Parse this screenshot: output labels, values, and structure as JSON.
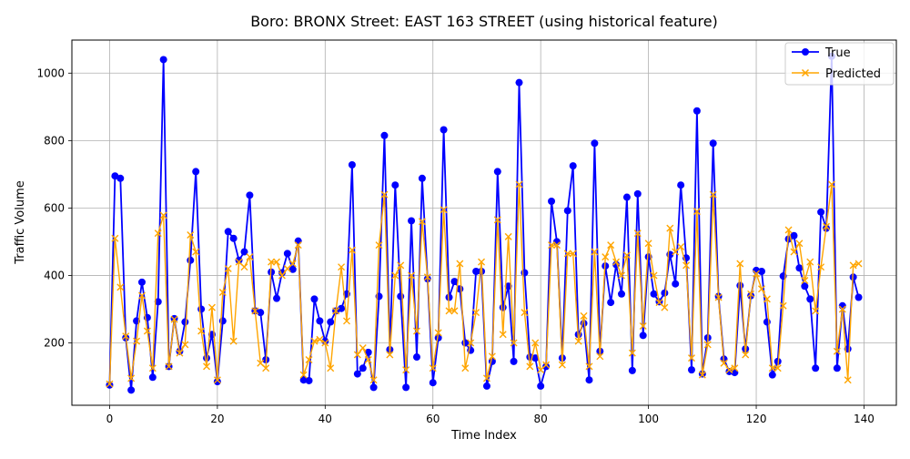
{
  "chart_data": {
    "type": "line",
    "title": "Boro: BRONX Street: EAST 163 STREET (using historical feature)",
    "xlabel": "Time Index",
    "ylabel": "Traffic Volume",
    "xlim": [
      -7,
      146
    ],
    "ylim": [
      15,
      1098
    ],
    "xticks": [
      0,
      20,
      40,
      60,
      80,
      100,
      120,
      140
    ],
    "yticks": [
      200,
      400,
      600,
      800,
      1000
    ],
    "grid": true,
    "legend_position": "top-right",
    "series": [
      {
        "name": "True",
        "color": "#0000ff",
        "marker": "circle",
        "values": [
          75,
          695,
          688,
          215,
          60,
          265,
          380,
          275,
          98,
          322,
          1040,
          130,
          272,
          175,
          262,
          445,
          708,
          300,
          155,
          225,
          85,
          265,
          530,
          510,
          445,
          470,
          638,
          295,
          290,
          150,
          410,
          332,
          408,
          465,
          418,
          502,
          90,
          88,
          330,
          265,
          205,
          262,
          295,
          302,
          345,
          728,
          108,
          125,
          172,
          68,
          338,
          815,
          180,
          668,
          338,
          68,
          562,
          158,
          688,
          390,
          82,
          215,
          832,
          335,
          382,
          360,
          200,
          178,
          412,
          412,
          72,
          145,
          708,
          305,
          368,
          145,
          972,
          408,
          158,
          155,
          72,
          130,
          620,
          500,
          155,
          592,
          725,
          225,
          258,
          90,
          792,
          175,
          428,
          320,
          432,
          345,
          632,
          118,
          642,
          222,
          455,
          345,
          322,
          348,
          462,
          375,
          668,
          452,
          120,
          888,
          108,
          215,
          792,
          338,
          152,
          115,
          112,
          370,
          182,
          340,
          415,
          412,
          262,
          105,
          145,
          398,
          508,
          518,
          422,
          368,
          330,
          125,
          588,
          540,
          1050,
          125,
          310,
          182,
          395,
          335
        ]
      },
      {
        "name": "Predicted",
        "color": "#ffa500",
        "marker": "x",
        "values": [
          78,
          510,
          365,
          220,
          95,
          205,
          340,
          235,
          125,
          525,
          578,
          130,
          270,
          170,
          195,
          520,
          470,
          235,
          130,
          305,
          90,
          350,
          420,
          205,
          440,
          425,
          455,
          295,
          140,
          125,
          440,
          440,
          400,
          420,
          435,
          490,
          105,
          150,
          205,
          210,
          200,
          125,
          295,
          425,
          265,
          475,
          165,
          185,
          150,
          90,
          490,
          640,
          165,
          400,
          430,
          120,
          400,
          235,
          560,
          395,
          125,
          230,
          595,
          295,
          295,
          435,
          125,
          200,
          290,
          440,
          95,
          160,
          565,
          225,
          515,
          200,
          670,
          290,
          130,
          200,
          120,
          135,
          490,
          490,
          135,
          465,
          465,
          205,
          280,
          130,
          470,
          160,
          455,
          490,
          440,
          400,
          460,
          170,
          525,
          250,
          495,
          400,
          320,
          305,
          540,
          470,
          485,
          430,
          155,
          590,
          105,
          195,
          640,
          335,
          140,
          120,
          125,
          435,
          165,
          345,
          405,
          360,
          330,
          125,
          125,
          310,
          535,
          470,
          495,
          385,
          440,
          295,
          425,
          545,
          670,
          175,
          300,
          90,
          430,
          435
        ]
      }
    ]
  }
}
